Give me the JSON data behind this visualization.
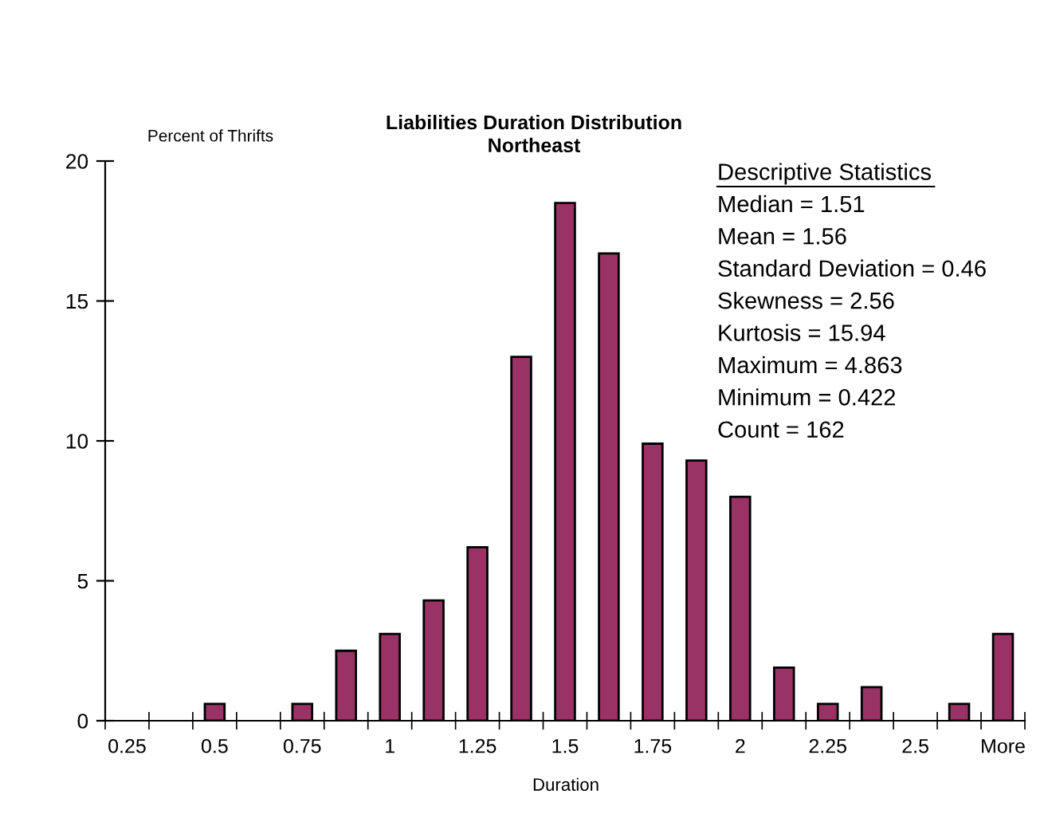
{
  "chart_data": {
    "type": "bar",
    "title": "Liabilities Duration Distribution\nNortheast",
    "xlabel": "Duration",
    "ylabel": "Percent of Thrifts",
    "categories": [
      "0.25",
      null,
      "0.5",
      null,
      "0.75",
      null,
      "1",
      null,
      "1.25",
      null,
      "1.5",
      null,
      "1.75",
      null,
      "2",
      null,
      "2.25",
      null,
      "2.5",
      null,
      "More"
    ],
    "values": [
      0,
      0,
      0.6,
      0,
      0.6,
      2.5,
      3.1,
      4.3,
      6.2,
      13.0,
      18.5,
      16.7,
      9.9,
      9.3,
      8.0,
      1.9,
      0.6,
      1.2,
      0,
      0.6,
      3.1
    ],
    "color": "#993366",
    "ylim": [
      0,
      20
    ],
    "yticks": [
      0,
      5,
      10,
      15,
      20
    ],
    "grid": false,
    "annotations": [
      "Descriptive Statistics",
      "Median = 1.51",
      "Mean = 1.56",
      "Standard Deviation = 0.46",
      "Skewness = 2.56",
      "Kurtosis = 15.94",
      "Maximum = 4.863",
      "Minimum = 0.422",
      "Count = 162"
    ]
  }
}
